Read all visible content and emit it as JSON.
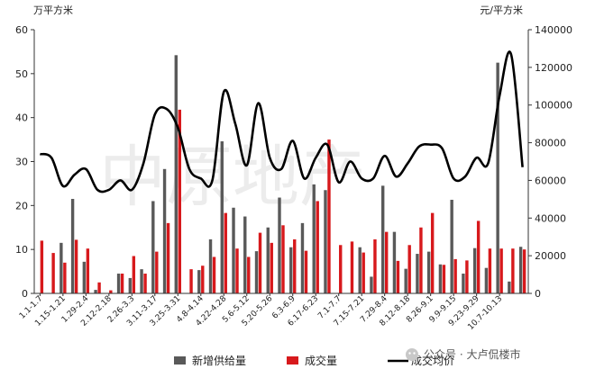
{
  "chart_data": {
    "type": "bar",
    "left_axis_unit": "万平方米",
    "right_axis_unit": "元/平方米",
    "y_left_lim": [
      0,
      60
    ],
    "y_left_ticks": [
      0,
      10,
      20,
      30,
      40,
      50,
      60
    ],
    "y_right_lim": [
      0,
      140000
    ],
    "y_right_ticks": [
      0,
      20000,
      40000,
      60000,
      80000,
      100000,
      120000,
      140000
    ],
    "x_tick_labels": [
      "1.1-1.7",
      "1.15-1.21",
      "1.29-2.4",
      "2.12-2.18",
      "2.26-3.3",
      "3.11-3.17",
      "3.25-3.31",
      "4.8-4.14",
      "4.22-4.28",
      "5.6-5.12",
      "5.20-5.26",
      "6.3-6.9",
      "6.17-6.23",
      "7.1-7.7",
      "7.15-7.21",
      "7.29-8.4",
      "8.12-8.18",
      "8.26-9.1",
      "9.9-9.15",
      "9.23-9.29",
      "10.7-10.13"
    ],
    "grid": false,
    "legend_position": "bottom",
    "series": [
      {
        "name": "新增供给量",
        "axis": "left",
        "kind": "bar",
        "color": "#595959",
        "values": [
          0,
          0,
          11.5,
          21.5,
          7.2,
          0.8,
          0,
          4.5,
          3.5,
          5.5,
          21,
          28.3,
          54.2,
          0,
          5.3,
          12.3,
          34.6,
          19.5,
          17.5,
          9.6,
          15,
          21.8,
          10.5,
          16,
          24.8,
          23.5,
          0,
          0,
          10.5,
          3.8,
          24.5,
          14,
          5.6,
          9,
          9.5,
          6.6,
          21.3,
          4.5,
          10.3,
          5.8,
          52.5,
          2.7,
          10.6
        ]
      },
      {
        "name": "成交量",
        "axis": "left",
        "kind": "bar",
        "color": "#d7191c",
        "values": [
          12,
          9.2,
          7,
          12.2,
          10.2,
          2.5,
          0.7,
          4.5,
          8.5,
          4.5,
          9.5,
          16,
          41.8,
          5.5,
          6.3,
          8.3,
          18.3,
          10.2,
          8.3,
          13.8,
          11.5,
          15.5,
          12.3,
          9.7,
          21,
          35,
          11,
          11.8,
          9.3,
          12.3,
          14,
          7.4,
          11,
          15,
          18.3,
          6.5,
          7.8,
          7.5,
          16.5,
          10.2,
          10.2,
          10.2,
          10
        ]
      },
      {
        "name": "成交均价",
        "axis": "right",
        "kind": "line",
        "color": "#000000",
        "values": [
          74000,
          72000,
          57000,
          63000,
          66000,
          55000,
          55000,
          60000,
          55000,
          69000,
          95000,
          98000,
          88000,
          66000,
          61000,
          60000,
          107000,
          90000,
          68000,
          101000,
          72000,
          66000,
          81000,
          61000,
          72000,
          79000,
          59000,
          70000,
          61000,
          61000,
          73000,
          62000,
          69000,
          78000,
          79000,
          77000,
          61000,
          62000,
          72000,
          69000,
          105000,
          127000,
          67000
        ]
      }
    ]
  },
  "watermark": "中原地产",
  "credit": "公众号 · 大卢侃楼市"
}
